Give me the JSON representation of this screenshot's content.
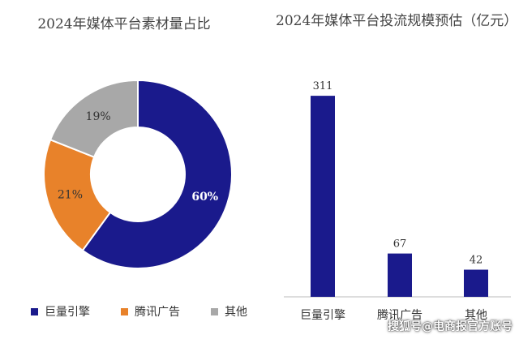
{
  "colors": {
    "primary": "#1a1a8c",
    "secondary": "#e8822a",
    "tertiary": "#a8a8a8"
  },
  "chart_data": [
    {
      "type": "pie",
      "title": "2024年媒体平台素材量占比",
      "categories": [
        "巨量引擎",
        "腾讯广告",
        "其他"
      ],
      "values": [
        60,
        21,
        19
      ],
      "labels": [
        "60%",
        "21%",
        "19%"
      ],
      "donut": true,
      "legend": "bottom"
    },
    {
      "type": "bar",
      "title": "2024年媒体平台投流规模预估（亿元）",
      "categories": [
        "巨量引擎",
        "腾讯广告",
        "其他"
      ],
      "values": [
        311,
        67,
        42
      ],
      "labels": [
        "311",
        "67",
        "42"
      ],
      "ylim": [
        0,
        340
      ],
      "grid": false
    }
  ],
  "watermark": "搜狐号@电商报官方账号"
}
